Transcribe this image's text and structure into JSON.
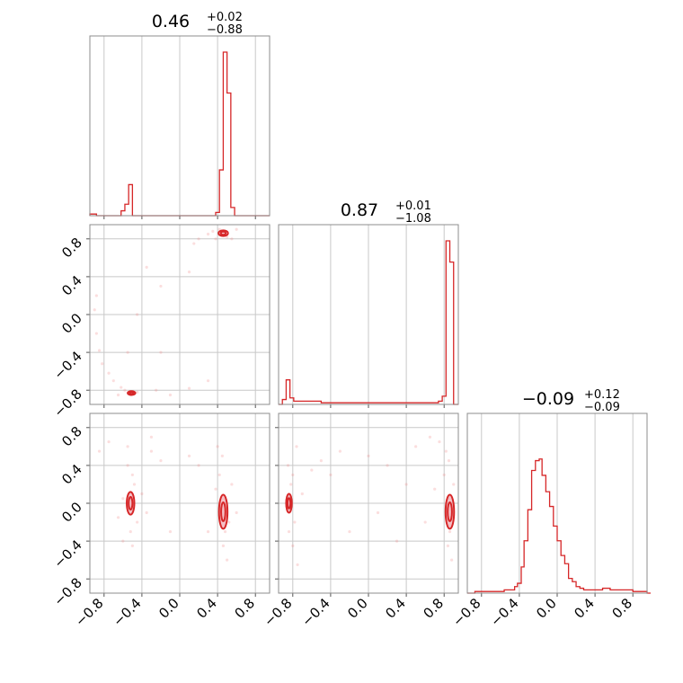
{
  "chart_data": {
    "type": "corner",
    "parameters": [
      {
        "title_value": "0.46",
        "title_plus": "+0.02",
        "title_minus": "−0.88"
      },
      {
        "title_value": "0.87",
        "title_plus": "+0.01",
        "title_minus": "−1.08"
      },
      {
        "title_value": "−0.09",
        "title_plus": "+0.12",
        "title_minus": "−0.09"
      }
    ],
    "axis_range": [
      -0.95,
      0.95
    ],
    "ticks": [
      -0.8,
      -0.4,
      0.0,
      0.4,
      0.8
    ],
    "tick_labels": [
      "−0.8",
      "−0.4",
      "0.0",
      "0.4",
      "0.8"
    ],
    "grid": true,
    "colors": {
      "line": "#d62728",
      "fill": "#f4b9c0",
      "points": "#f08a8a",
      "frame": "#8c8c8c",
      "grid": "#c8c8c8"
    },
    "histograms": [
      {
        "bins": [
          [
            -0.95,
            0.01
          ],
          [
            -0.88,
            0.0
          ],
          [
            -0.62,
            0.03
          ],
          [
            -0.58,
            0.07
          ],
          [
            -0.54,
            0.19
          ],
          [
            -0.5,
            0.0
          ],
          [
            -0.46,
            0.0
          ],
          [
            0.38,
            0.02
          ],
          [
            0.42,
            0.28
          ],
          [
            0.46,
            1.0
          ],
          [
            0.5,
            0.75
          ],
          [
            0.54,
            0.05
          ],
          [
            0.58,
            0.0
          ]
        ]
      },
      {
        "bins": [
          [
            -0.95,
            0.0
          ],
          [
            -0.91,
            0.03
          ],
          [
            -0.87,
            0.15
          ],
          [
            -0.83,
            0.04
          ],
          [
            -0.79,
            0.02
          ],
          [
            -0.5,
            0.01
          ],
          [
            0.0,
            0.01
          ],
          [
            0.5,
            0.01
          ],
          [
            0.74,
            0.02
          ],
          [
            0.78,
            0.05
          ],
          [
            0.82,
            1.0
          ],
          [
            0.86,
            0.87
          ],
          [
            0.9,
            0.0
          ]
        ]
      },
      {
        "bins": [
          [
            -0.95,
            0.0
          ],
          [
            -0.87,
            0.01
          ],
          [
            -0.75,
            0.01
          ],
          [
            -0.65,
            0.01
          ],
          [
            -0.56,
            0.02
          ],
          [
            -0.52,
            0.02
          ],
          [
            -0.48,
            0.02
          ],
          [
            -0.45,
            0.04
          ],
          [
            -0.42,
            0.06
          ],
          [
            -0.38,
            0.16
          ],
          [
            -0.35,
            0.32
          ],
          [
            -0.31,
            0.51
          ],
          [
            -0.27,
            0.75
          ],
          [
            -0.23,
            0.81
          ],
          [
            -0.19,
            0.82
          ],
          [
            -0.16,
            0.72
          ],
          [
            -0.12,
            0.62
          ],
          [
            -0.08,
            0.53
          ],
          [
            -0.04,
            0.41
          ],
          [
            0.0,
            0.32
          ],
          [
            0.04,
            0.23
          ],
          [
            0.08,
            0.18
          ],
          [
            0.12,
            0.09
          ],
          [
            0.16,
            0.07
          ],
          [
            0.2,
            0.04
          ],
          [
            0.24,
            0.03
          ],
          [
            0.28,
            0.02
          ],
          [
            0.32,
            0.02
          ],
          [
            0.4,
            0.02
          ],
          [
            0.48,
            0.03
          ],
          [
            0.56,
            0.02
          ],
          [
            0.64,
            0.02
          ],
          [
            0.8,
            0.01
          ],
          [
            0.88,
            0.01
          ],
          [
            0.95,
            0.0
          ]
        ]
      }
    ],
    "scatter": [
      {
        "xi": 0,
        "yi": 1,
        "points": [
          [
            -0.45,
            -0.82
          ],
          [
            -0.52,
            -0.85
          ],
          [
            -0.58,
            -0.8
          ],
          [
            -0.62,
            -0.77
          ],
          [
            -0.7,
            -0.7
          ],
          [
            -0.75,
            -0.62
          ],
          [
            -0.82,
            -0.52
          ],
          [
            -0.85,
            -0.38
          ],
          [
            -0.88,
            -0.2
          ],
          [
            -0.9,
            0.05
          ],
          [
            -0.88,
            0.2
          ],
          [
            -0.55,
            -0.4
          ],
          [
            -0.45,
            0.0
          ],
          [
            -0.2,
            0.3
          ],
          [
            0.1,
            0.45
          ],
          [
            0.15,
            0.75
          ],
          [
            0.2,
            0.8
          ],
          [
            0.3,
            0.85
          ],
          [
            0.35,
            0.88
          ],
          [
            0.42,
            0.9
          ],
          [
            0.5,
            0.82
          ],
          [
            0.55,
            0.8
          ],
          [
            0.6,
            0.9
          ],
          [
            0.38,
            0.8
          ],
          [
            -0.25,
            -0.8
          ],
          [
            0.1,
            -0.78
          ],
          [
            0.3,
            -0.7
          ],
          [
            -0.1,
            -0.85
          ],
          [
            -0.65,
            -0.85
          ],
          [
            -0.35,
            0.5
          ],
          [
            -0.2,
            -0.4
          ]
        ]
      },
      {
        "xi": 0,
        "yi": 2,
        "points": [
          [
            -0.55,
            0.4
          ],
          [
            -0.5,
            0.3
          ],
          [
            -0.48,
            0.2
          ],
          [
            -0.45,
            -0.2
          ],
          [
            -0.52,
            -0.3
          ],
          [
            -0.5,
            -0.45
          ],
          [
            -0.55,
            0.6
          ],
          [
            -0.6,
            0.05
          ],
          [
            -0.4,
            0.1
          ],
          [
            0.4,
            0.6
          ],
          [
            0.45,
            0.5
          ],
          [
            0.42,
            0.3
          ],
          [
            0.48,
            -0.3
          ],
          [
            0.46,
            -0.45
          ],
          [
            0.5,
            -0.6
          ],
          [
            0.38,
            0.15
          ],
          [
            0.55,
            0.2
          ],
          [
            0.52,
            -0.2
          ],
          [
            -0.85,
            0.55
          ],
          [
            -0.75,
            0.65
          ],
          [
            -0.3,
            0.55
          ],
          [
            -0.2,
            0.45
          ],
          [
            0.1,
            0.5
          ],
          [
            0.2,
            0.4
          ],
          [
            -0.1,
            -0.3
          ],
          [
            -0.6,
            -0.4
          ],
          [
            -0.3,
            0.7
          ],
          [
            0.6,
            -0.1
          ],
          [
            -0.35,
            -0.1
          ],
          [
            -0.65,
            -0.15
          ],
          [
            0.3,
            -0.3
          ]
        ]
      },
      {
        "xi": 1,
        "yi": 2,
        "points": [
          [
            -0.85,
            0.4
          ],
          [
            -0.8,
            0.3
          ],
          [
            -0.82,
            0.2
          ],
          [
            -0.78,
            -0.2
          ],
          [
            -0.84,
            -0.3
          ],
          [
            -0.8,
            -0.45
          ],
          [
            -0.76,
            0.6
          ],
          [
            -0.7,
            0.1
          ],
          [
            0.82,
            0.55
          ],
          [
            0.85,
            0.45
          ],
          [
            0.8,
            0.3
          ],
          [
            0.86,
            -0.3
          ],
          [
            0.84,
            -0.45
          ],
          [
            0.88,
            -0.6
          ],
          [
            0.75,
            0.65
          ],
          [
            0.7,
            0.15
          ],
          [
            0.65,
            0.7
          ],
          [
            0.9,
            0.2
          ],
          [
            -0.5,
            0.45
          ],
          [
            -0.4,
            0.3
          ],
          [
            0.0,
            0.5
          ],
          [
            0.2,
            0.4
          ],
          [
            0.5,
            0.6
          ],
          [
            -0.2,
            -0.3
          ],
          [
            0.3,
            -0.4
          ],
          [
            -0.6,
            0.35
          ],
          [
            -0.75,
            -0.65
          ],
          [
            0.6,
            -0.2
          ],
          [
            -0.3,
            0.55
          ],
          [
            0.4,
            0.2
          ],
          [
            0.1,
            -0.1
          ]
        ]
      }
    ],
    "contours": [
      {
        "xi": 0,
        "yi": 1,
        "blobs": [
          {
            "cx": 0.46,
            "cy": 0.86,
            "rx": 0.05,
            "ry": 0.03
          },
          {
            "cx": -0.51,
            "cy": -0.83,
            "rx": 0.04,
            "ry": 0.02
          }
        ]
      },
      {
        "xi": 0,
        "yi": 2,
        "blobs": [
          {
            "cx": 0.46,
            "cy": -0.09,
            "rx": 0.045,
            "ry": 0.18
          },
          {
            "cx": -0.52,
            "cy": 0.0,
            "rx": 0.04,
            "ry": 0.12
          }
        ]
      },
      {
        "xi": 1,
        "yi": 2,
        "blobs": [
          {
            "cx": 0.86,
            "cy": -0.09,
            "rx": 0.045,
            "ry": 0.18
          },
          {
            "cx": -0.84,
            "cy": 0.0,
            "rx": 0.03,
            "ry": 0.1
          }
        ]
      }
    ]
  }
}
